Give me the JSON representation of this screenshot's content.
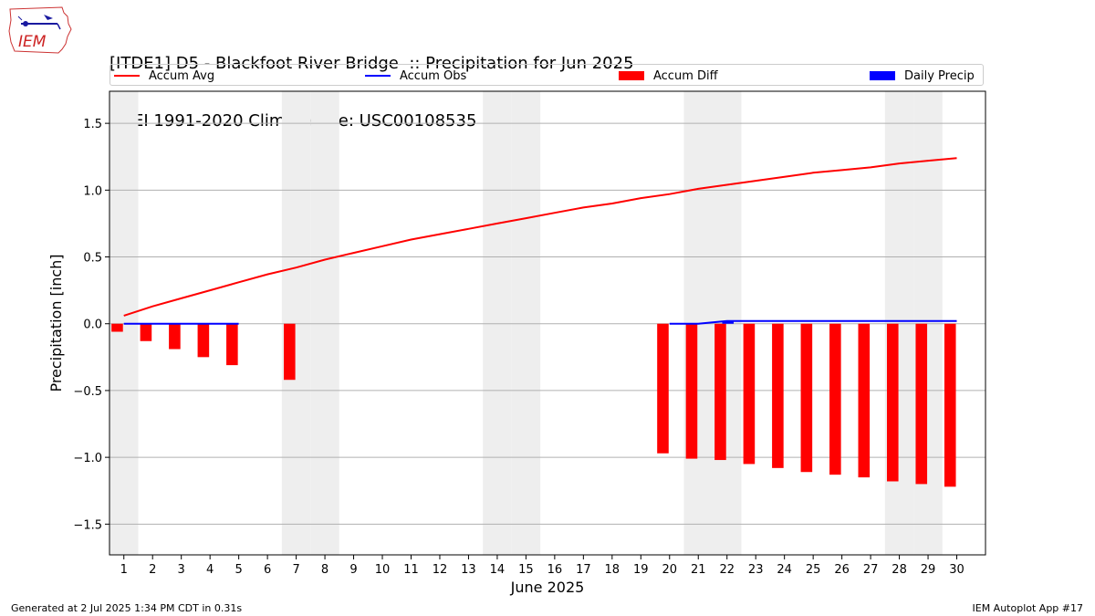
{
  "header": {
    "title_line1": "[ITDE1] D5 - Blackfoot River Bridge  :: Precipitation for Jun 2025",
    "title_line2": "NCEI 1991-2020 Climate Site: USC00108535",
    "logo_text": "IEM"
  },
  "legend": {
    "items": [
      {
        "label": "Accum Avg",
        "color": "#ff0000",
        "kind": "line"
      },
      {
        "label": "Accum Obs",
        "color": "#0000ff",
        "kind": "line"
      },
      {
        "label": "Accum Diff",
        "color": "#ff0000",
        "kind": "box"
      },
      {
        "label": "Daily Precip",
        "color": "#0000ff",
        "kind": "box"
      }
    ]
  },
  "footer": {
    "left": "Generated at 2 Jul 2025 1:34 PM CDT in 0.31s",
    "right": "IEM Autoplot App #17"
  },
  "chart_data": {
    "type": "bar",
    "xlabel": "June 2025",
    "ylabel": "Precipitation [inch]",
    "xlim": [
      0.5,
      31
    ],
    "ylim": [
      -1.73,
      1.74
    ],
    "yticks": [
      -1.5,
      -1.0,
      -0.5,
      0.0,
      0.5,
      1.0,
      1.5
    ],
    "ytick_labels": [
      "−1.5",
      "−1.0",
      "−0.5",
      "0.0",
      "0.5",
      "1.0",
      "1.5"
    ],
    "days": [
      1,
      2,
      3,
      4,
      5,
      6,
      7,
      8,
      9,
      10,
      11,
      12,
      13,
      14,
      15,
      16,
      17,
      18,
      19,
      20,
      21,
      22,
      23,
      24,
      25,
      26,
      27,
      28,
      29,
      30
    ],
    "weekend_days": [
      1,
      7,
      8,
      14,
      15,
      21,
      22,
      28,
      29
    ],
    "grid": true,
    "series": [
      {
        "name": "Accum Avg",
        "kind": "line",
        "color": "#ff0000",
        "x": [
          1,
          2,
          3,
          4,
          5,
          6,
          7,
          8,
          9,
          10,
          11,
          12,
          13,
          14,
          15,
          16,
          17,
          18,
          19,
          20,
          21,
          22,
          23,
          24,
          25,
          26,
          27,
          28,
          29,
          30
        ],
        "values": [
          0.06,
          0.13,
          0.19,
          0.25,
          0.31,
          0.37,
          0.42,
          0.48,
          0.53,
          0.58,
          0.63,
          0.67,
          0.71,
          0.75,
          0.79,
          0.83,
          0.87,
          0.9,
          0.94,
          0.97,
          1.01,
          1.04,
          1.07,
          1.1,
          1.13,
          1.15,
          1.17,
          1.2,
          1.22,
          1.24
        ]
      },
      {
        "name": "Accum Obs",
        "kind": "line",
        "color": "#0000ff",
        "segments": [
          {
            "x": [
              1,
              2,
              3,
              4,
              5
            ],
            "values": [
              0.0,
              0.0,
              0.0,
              0.0,
              0.0
            ]
          },
          {
            "x": [
              20,
              21,
              22,
              23,
              24,
              25,
              26,
              27,
              28,
              29,
              30
            ],
            "values": [
              0.0,
              0.0,
              0.02,
              0.02,
              0.02,
              0.02,
              0.02,
              0.02,
              0.02,
              0.02,
              0.02
            ]
          }
        ]
      },
      {
        "name": "Accum Diff",
        "kind": "bar",
        "color": "#ff0000",
        "x": [
          1,
          2,
          3,
          4,
          5,
          7,
          20,
          21,
          22,
          23,
          24,
          25,
          26,
          27,
          28,
          29,
          30
        ],
        "values": [
          -0.06,
          -0.13,
          -0.19,
          -0.25,
          -0.31,
          -0.42,
          -0.97,
          -1.01,
          -1.02,
          -1.05,
          -1.08,
          -1.11,
          -1.13,
          -1.15,
          -1.18,
          -1.2,
          -1.22
        ]
      },
      {
        "name": "Daily Precip",
        "kind": "bar",
        "color": "#0000ff",
        "x": [
          22
        ],
        "values": [
          0.02
        ]
      }
    ]
  }
}
